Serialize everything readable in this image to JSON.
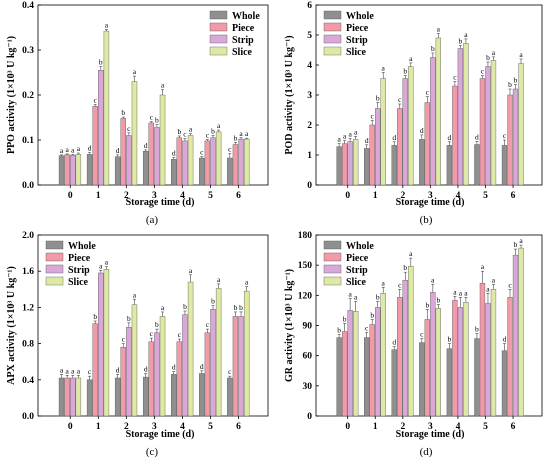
{
  "figure": {
    "legend_labels": [
      "Whole",
      "Piece",
      "Strip",
      "Slice"
    ],
    "series_colors": {
      "Whole": "#8f8f8f",
      "Piece": "#f29aa8",
      "Strip": "#d9a8d8",
      "Slice": "#dfe9a6"
    }
  },
  "chart_data": [
    {
      "panel": "(a)",
      "type": "bar",
      "xlabel": "Storage time (d)",
      "ylabel": "PPO activity (1×10³ U kg⁻¹)",
      "categories": [
        "0",
        "1",
        "2",
        "3",
        "4",
        "5",
        "6"
      ],
      "ylim": [
        0,
        0.4
      ],
      "yticks": [
        "0.0",
        "0.1",
        "0.2",
        "0.3",
        "0.4"
      ],
      "legend_position": "top-right",
      "series": [
        {
          "name": "Whole",
          "values": [
            0.065,
            0.068,
            0.063,
            0.075,
            0.057,
            0.06,
            0.06
          ],
          "errors": [
            0.002,
            0.004,
            0.004,
            0.003,
            0.004,
            0.003,
            0.01
          ],
          "letters": [
            "a",
            "d",
            "d",
            "d",
            "d",
            "c",
            "c"
          ]
        },
        {
          "name": "Piece",
          "values": [
            0.067,
            0.175,
            0.148,
            0.138,
            0.105,
            0.098,
            0.09
          ],
          "errors": [
            0.002,
            0.004,
            0.003,
            0.003,
            0.004,
            0.003,
            0.005
          ],
          "letters": [
            "a",
            "c",
            "b",
            "c",
            "b",
            "c",
            "b"
          ]
        },
        {
          "name": "Strip",
          "values": [
            0.066,
            0.255,
            0.11,
            0.128,
            0.098,
            0.105,
            0.102
          ],
          "errors": [
            0.002,
            0.008,
            0.006,
            0.006,
            0.005,
            0.005,
            0.003
          ],
          "letters": [
            "a",
            "b",
            "c",
            "b",
            "c",
            "b",
            "a"
          ]
        },
        {
          "name": "Slice",
          "values": [
            0.068,
            0.342,
            0.23,
            0.2,
            0.11,
            0.118,
            0.102
          ],
          "errors": [
            0.003,
            0.004,
            0.012,
            0.012,
            0.004,
            0.004,
            0.002
          ],
          "letters": [
            "a",
            "a",
            "a",
            "a",
            "a",
            "a",
            "a"
          ]
        }
      ]
    },
    {
      "panel": "(b)",
      "type": "bar",
      "xlabel": "Storage time (d)",
      "ylabel": "POD activity (1×10³ U kg⁻¹)",
      "categories": [
        "0",
        "1",
        "2",
        "3",
        "4",
        "5",
        "6"
      ],
      "ylim": [
        0,
        6
      ],
      "yticks": [
        "0",
        "1",
        "2",
        "3",
        "4",
        "5",
        "6"
      ],
      "legend_position": "top-left",
      "series": [
        {
          "name": "Whole",
          "values": [
            1.28,
            1.22,
            1.32,
            1.52,
            1.32,
            1.35,
            1.32
          ],
          "errors": [
            0.1,
            0.12,
            0.12,
            0.15,
            0.12,
            0.1,
            0.18
          ],
          "letters": [
            "a",
            "d",
            "d",
            "d",
            "d",
            "d",
            "c"
          ]
        },
        {
          "name": "Piece",
          "values": [
            1.38,
            2.0,
            2.55,
            2.75,
            3.3,
            3.55,
            3.0
          ],
          "errors": [
            0.1,
            0.15,
            0.15,
            0.2,
            0.15,
            0.1,
            0.2
          ],
          "letters": [
            "a",
            "c",
            "c",
            "c",
            "c",
            "c",
            "b"
          ]
        },
        {
          "name": "Strip",
          "values": [
            1.45,
            2.55,
            3.55,
            4.25,
            4.55,
            3.95,
            3.2
          ],
          "errors": [
            0.1,
            0.2,
            0.1,
            0.15,
            0.1,
            0.15,
            0.15
          ],
          "letters": [
            "a",
            "b",
            "b",
            "b",
            "b",
            "b",
            "b"
          ]
        },
        {
          "name": "Slice",
          "values": [
            1.52,
            3.55,
            3.95,
            4.9,
            4.72,
            4.15,
            4.05
          ],
          "errors": [
            0.1,
            0.2,
            0.12,
            0.15,
            0.15,
            0.12,
            0.15
          ],
          "letters": [
            "a",
            "a",
            "a",
            "a",
            "a",
            "a",
            "a"
          ]
        }
      ]
    },
    {
      "panel": "(c)",
      "type": "bar",
      "xlabel": "Storage time (d)",
      "ylabel": "APX activity (1×10³ U kg⁻¹)",
      "categories": [
        "0",
        "1",
        "2",
        "3",
        "4",
        "5",
        "6"
      ],
      "ylim": [
        0,
        2.0
      ],
      "yticks": [
        "0.0",
        "0.4",
        "0.8",
        "1.2",
        "1.6",
        "2.0"
      ],
      "legend_position": "top-left",
      "series": [
        {
          "name": "Whole",
          "values": [
            0.42,
            0.4,
            0.42,
            0.43,
            0.46,
            0.47,
            0.42
          ],
          "errors": [
            0.04,
            0.04,
            0.04,
            0.04,
            0.03,
            0.03,
            0.02
          ],
          "letters": [
            "a",
            "c",
            "d",
            "d",
            "d",
            "d",
            "c"
          ]
        },
        {
          "name": "Piece",
          "values": [
            0.42,
            1.02,
            0.76,
            0.82,
            0.82,
            0.92,
            1.1
          ],
          "errors": [
            0.03,
            0.03,
            0.04,
            0.04,
            0.03,
            0.04,
            0.05
          ],
          "letters": [
            "a",
            "b",
            "c",
            "c",
            "c",
            "c",
            "b"
          ]
        },
        {
          "name": "Strip",
          "values": [
            0.42,
            1.58,
            0.98,
            0.92,
            1.12,
            1.18,
            1.1
          ],
          "errors": [
            0.03,
            0.03,
            0.05,
            0.04,
            0.04,
            0.04,
            0.05
          ],
          "letters": [
            "a",
            "a",
            "b",
            "b",
            "b",
            "b",
            "b"
          ]
        },
        {
          "name": "Slice",
          "values": [
            0.42,
            1.62,
            1.23,
            1.1,
            1.48,
            1.41,
            1.38
          ],
          "errors": [
            0.03,
            0.03,
            0.06,
            0.05,
            0.08,
            0.05,
            0.05
          ],
          "letters": [
            "a",
            "a",
            "a",
            "a",
            "a",
            "a",
            "a"
          ]
        }
      ]
    },
    {
      "panel": "(d)",
      "type": "bar",
      "xlabel": "Storage time (d)",
      "ylabel": "GR activity (1×10³ U kg⁻¹)",
      "categories": [
        "0",
        "1",
        "2",
        "3",
        "4",
        "5",
        "6"
      ],
      "ylim": [
        0,
        180
      ],
      "yticks": [
        "0",
        "30",
        "60",
        "90",
        "120",
        "150",
        "180"
      ],
      "legend_position": "top-left",
      "series": [
        {
          "name": "Whole",
          "values": [
            78,
            78,
            66,
            73,
            67,
            77,
            65
          ],
          "errors": [
            3,
            5,
            3,
            4,
            5,
            5,
            7
          ],
          "letters": [
            "b",
            "c",
            "d",
            "c",
            "b",
            "b",
            "d"
          ]
        },
        {
          "name": "Piece",
          "values": [
            84,
            91,
            118,
            96,
            115,
            132,
            118
          ],
          "errors": [
            8,
            5,
            8,
            10,
            4,
            12,
            8
          ],
          "letters": [
            "b",
            "b",
            "c",
            "b",
            "a",
            "a",
            "c"
          ]
        },
        {
          "name": "Strip",
          "values": [
            105,
            108,
            135,
            123,
            108,
            112,
            160
          ],
          "errors": [
            12,
            6,
            8,
            8,
            10,
            10,
            6
          ],
          "letters": [
            "a",
            "b",
            "b",
            "a",
            "a",
            "a",
            "b"
          ]
        },
        {
          "name": "Slice",
          "values": [
            104,
            122,
            149,
            107,
            113,
            126,
            167
          ],
          "errors": [
            10,
            6,
            8,
            4,
            5,
            5,
            3
          ],
          "letters": [
            "a",
            "a",
            "a",
            "b",
            "a",
            "a",
            "a"
          ]
        }
      ]
    }
  ]
}
